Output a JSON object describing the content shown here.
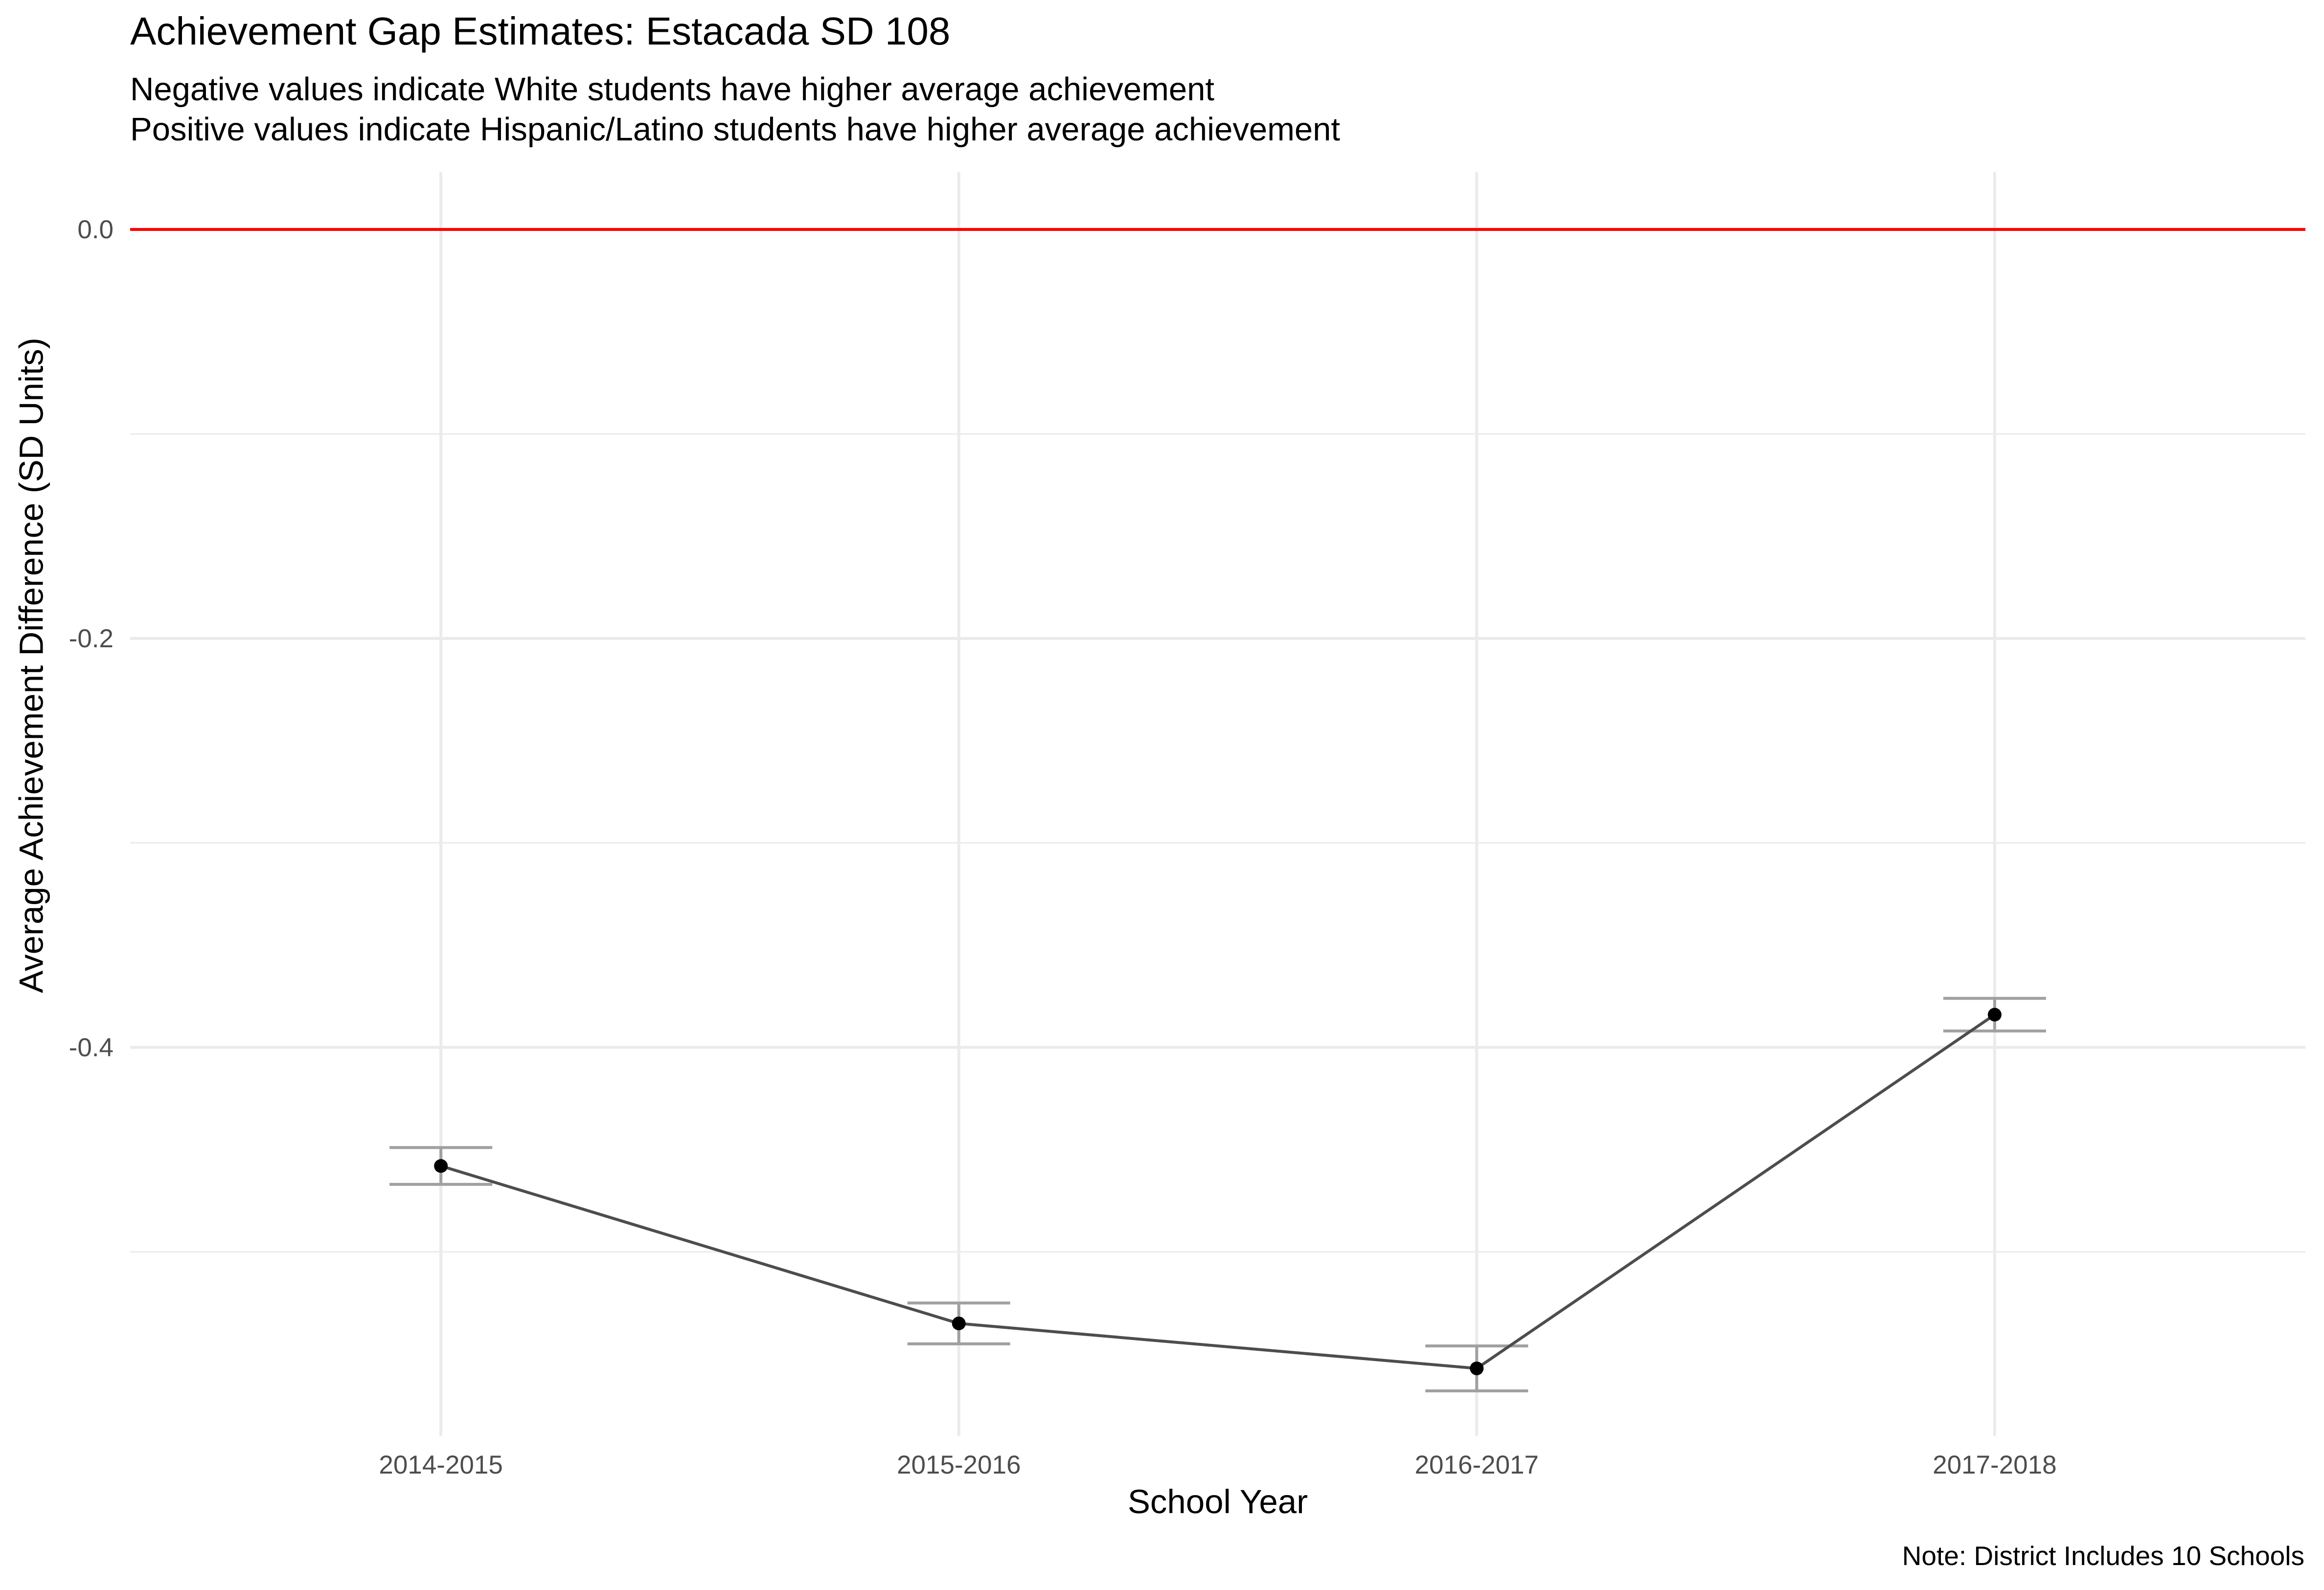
{
  "chart_data": {
    "type": "line",
    "title": "Achievement Gap Estimates: Estacada SD 108",
    "subtitle_lines": [
      "Negative values indicate White students have higher average achievement",
      "Positive values indicate Hispanic/Latino students have higher average achievement"
    ],
    "xlabel": "School Year",
    "ylabel": "Average Achievement Difference (SD Units)",
    "caption": "Note: District Includes 10 Schools",
    "categories": [
      "2014-2015",
      "2015-2016",
      "2016-2017",
      "2017-2018"
    ],
    "series": [
      {
        "values": [
          -0.458,
          -0.535,
          -0.557,
          -0.384
        ],
        "error_low": [
          -0.467,
          -0.545,
          -0.568,
          -0.392
        ],
        "error_high": [
          -0.449,
          -0.525,
          -0.546,
          -0.376
        ]
      }
    ],
    "reference_line": {
      "y": 0.0,
      "color": "#ff0000"
    },
    "ylim": [
      -0.59,
      0.028
    ],
    "yticks": [
      0.0,
      -0.2,
      -0.4
    ],
    "ytick_labels": [
      "0.0",
      "-0.2",
      "-0.4"
    ],
    "grid": true,
    "colors": {
      "line": "#4d4d4d",
      "point": "#000000",
      "errorbar": "#a0a0a0",
      "grid": "#ebebeb"
    }
  }
}
